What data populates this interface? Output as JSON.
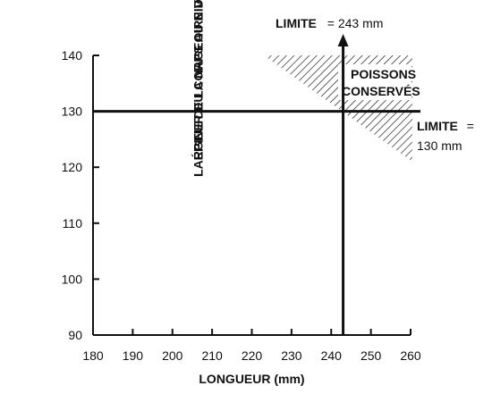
{
  "chart_data": {
    "type": "line",
    "xlabel": "LONGUEUR (mm)",
    "ylabel_lines": [
      "LARGEUR DU CORPS AU NIVEAU DE LA PREMIÈRE",
      "ÉPINE DE LA NAGEOIRE DORSALE (mm)"
    ],
    "xlim": [
      180,
      260
    ],
    "ylim": [
      90,
      140
    ],
    "x_ticks": [
      180,
      190,
      200,
      210,
      220,
      230,
      240,
      250,
      260
    ],
    "y_ticks": [
      90,
      100,
      110,
      120,
      130,
      140
    ],
    "grid": false,
    "reference_lines": [
      {
        "orientation": "vertical",
        "value": 243,
        "label_word": "LIMITE",
        "label_rest": "= 243 mm"
      },
      {
        "orientation": "horizontal",
        "value": 130,
        "label_word": "LIMITE",
        "label_rest": "=",
        "label_line2": "130 mm"
      }
    ],
    "region": {
      "label_line1": "POISSONS",
      "label_line2": "CONSERVÉS",
      "top_value": 140,
      "top_x_range": [
        223,
        260
      ],
      "right_x": 260,
      "right_y_min": 121,
      "fill": "hatched"
    }
  }
}
